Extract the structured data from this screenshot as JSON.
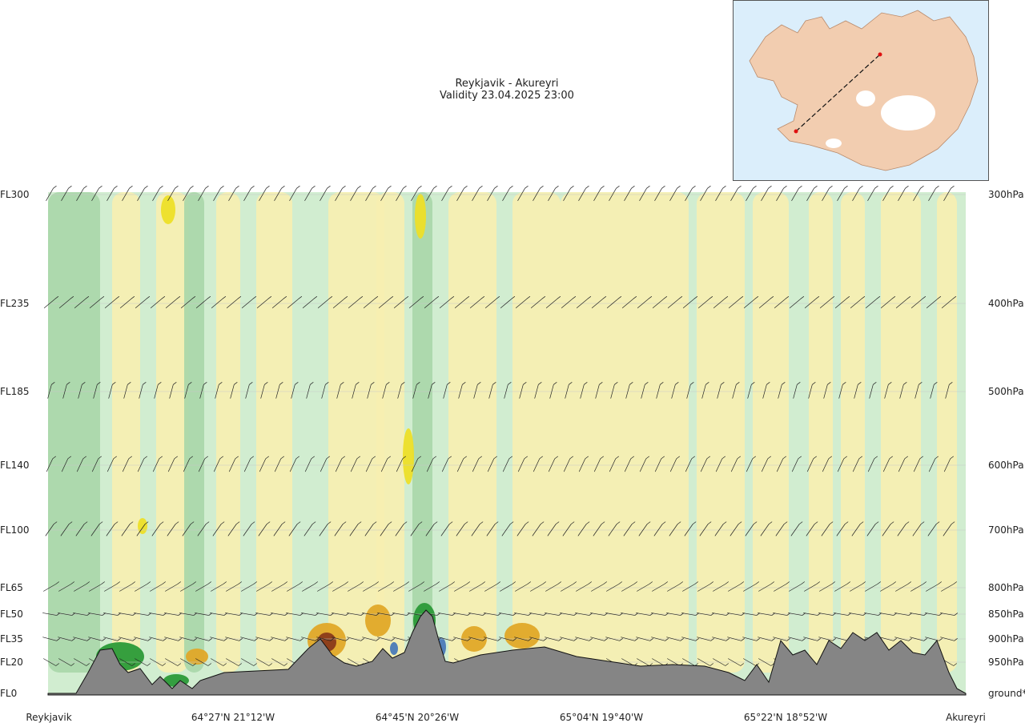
{
  "header": {
    "route": "Reykjavik - Akureyri",
    "validity": "Validity 23.04.2025 23:00"
  },
  "chart_data": {
    "type": "cross-section",
    "left_levels": [
      "FL300",
      "FL235",
      "FL185",
      "FL140",
      "FL100",
      "FL65",
      "FL50",
      "FL35",
      "FL20",
      "FL0"
    ],
    "right_levels": [
      "300hPa",
      "400hPa",
      "500hPa",
      "600hPa",
      "700hPa",
      "800hPa",
      "850hPa",
      "900hPa",
      "950hPa",
      "ground*"
    ],
    "x_labels": [
      "Reykjavik",
      "64°27'N 21°12'W",
      "64°45'N 20°26'W",
      "65°04'N 19°40'W",
      "65°22'N 18°52'W",
      "Akureyri"
    ],
    "terrain_color": "#858585",
    "shading_colors": {
      "light_green": "#d1edd0",
      "mid_green": "#a8d6a8",
      "dark_green": "#2b9a38",
      "pale_yellow": "#f7eeb0",
      "yellow": "#eddf28",
      "orange": "#e0a828",
      "brown": "#8a3a1a",
      "blue": "#4a7ab8"
    }
  },
  "inset_map": {
    "land_color": "#f2cdb0",
    "sea_color": "#dbeefb",
    "route_color": "#e01010"
  }
}
